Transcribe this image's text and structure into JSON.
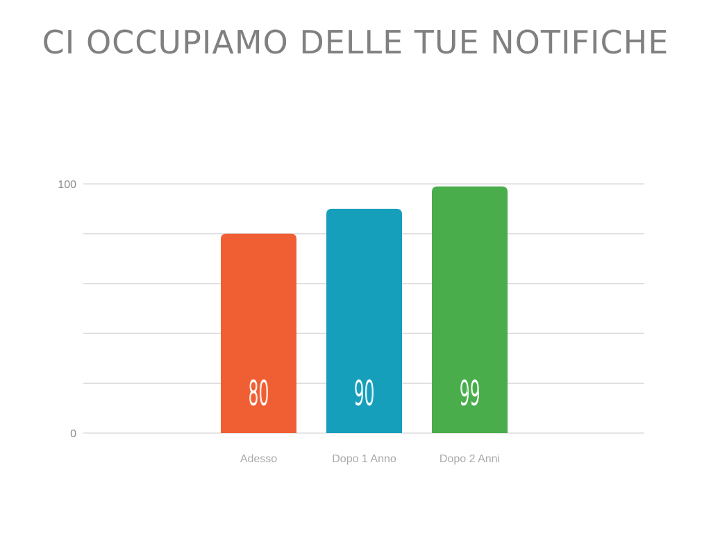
{
  "chart_data": {
    "type": "bar",
    "title": "CI OCCUPIAMO DELLE TUE NOTIFICHE",
    "categories": [
      "Adesso",
      "Dopo 1 Anno",
      "Dopo 2 Anni"
    ],
    "values": [
      80,
      90,
      99
    ],
    "data_labels": [
      "80",
      "90",
      "99"
    ],
    "colors": [
      "#f05f33",
      "#169fbb",
      "#4aad4c"
    ],
    "ylim": [
      0,
      100
    ],
    "yticks": [
      0,
      20,
      40,
      60,
      80,
      100
    ],
    "ytick_labels": [
      "0",
      "100"
    ],
    "grid": true,
    "xlabel": "",
    "ylabel": ""
  }
}
